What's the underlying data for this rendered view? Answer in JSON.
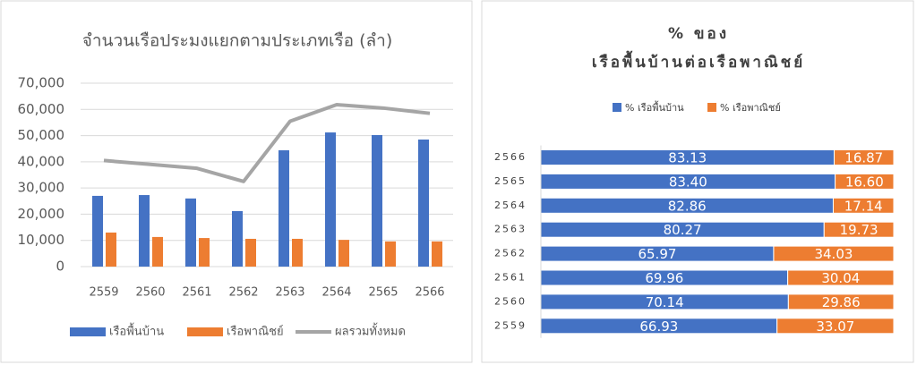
{
  "chart_data": [
    {
      "type": "bar",
      "title": "จำนวนเรือประมงแยกตามประเภทเรือ (ลำ)",
      "categories": [
        "2559",
        "2560",
        "2561",
        "2562",
        "2563",
        "2564",
        "2565",
        "2566"
      ],
      "series": [
        {
          "name": "เรือพื้นบ้าน",
          "color": "#4472c4",
          "values": [
            27000,
            27300,
            26000,
            21200,
            44400,
            51200,
            50200,
            48500
          ]
        },
        {
          "name": "เรือพาณิชย์",
          "color": "#ed7d31",
          "values": [
            13000,
            11300,
            10900,
            10600,
            10600,
            10200,
            9600,
            9600
          ]
        },
        {
          "name": "ผลรวมทั้งหมด",
          "color": "#a5a5a5",
          "type": "line",
          "values": [
            40500,
            39000,
            37500,
            32500,
            55500,
            61800,
            60500,
            58500
          ]
        }
      ],
      "ylim": [
        0,
        70000
      ],
      "yticks": [
        0,
        {
          "value": 10000,
          "label": "10,000"
        },
        {
          "value": 20000,
          "label": "20,000"
        },
        {
          "value": 30000,
          "label": "30,000"
        },
        {
          "value": 40000,
          "label": "40,000"
        },
        {
          "value": 50000,
          "label": "50,000"
        },
        {
          "value": 60000,
          "label": "60,000"
        },
        {
          "value": 70000,
          "label": "70,000"
        }
      ],
      "grid": true,
      "legend": "bottom"
    },
    {
      "type": "stacked-barh",
      "title": [
        "% ของ",
        "เรือพื้นบ้านต่อเรือพาณิชย์"
      ],
      "categories": [
        "2559",
        "2560",
        "2561",
        "2562",
        "2563",
        "2564",
        "2565",
        "2566"
      ],
      "series": [
        {
          "name": "% เรือพื้นบ้าน",
          "color": "#4472c4",
          "values": [
            66.93,
            70.14,
            69.96,
            65.97,
            80.27,
            82.86,
            83.4,
            83.13
          ],
          "value_labels": [
            "66.93",
            "70.14",
            "69.96",
            "65.97",
            "80.27",
            "82.86",
            "83.40",
            "83.13"
          ]
        },
        {
          "name": "% เรือพาณิชย์",
          "color": "#ed7d31",
          "values": [
            33.07,
            29.86,
            30.04,
            34.03,
            19.73,
            17.14,
            16.6,
            16.87
          ],
          "value_labels": [
            "33.07",
            "29.86",
            "30.04",
            "34.03",
            "19.73",
            "17.14",
            "16.60",
            "16.87"
          ]
        }
      ],
      "xlim": [
        0,
        100
      ],
      "legend": "top"
    }
  ]
}
